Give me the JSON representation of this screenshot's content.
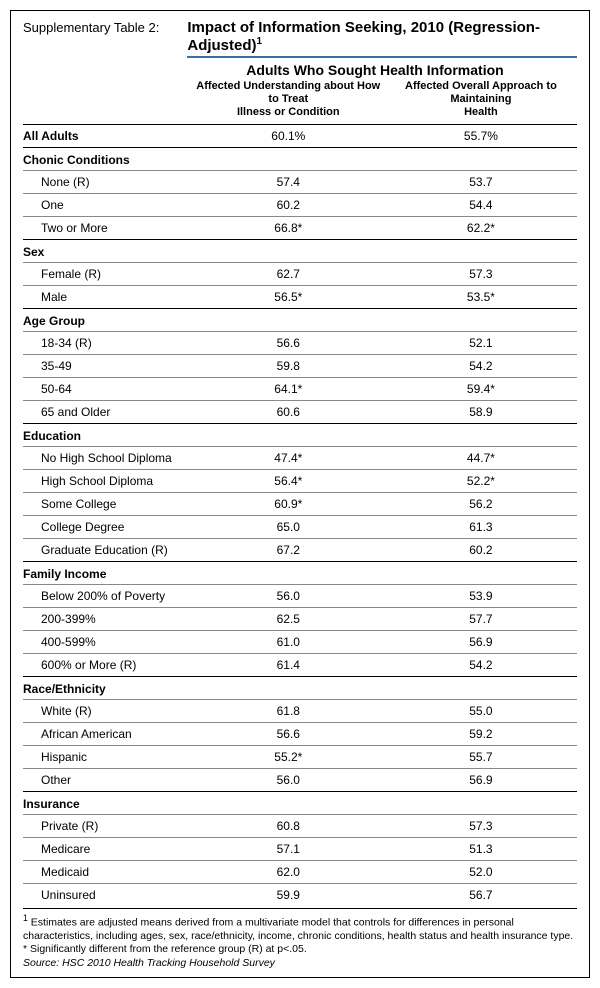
{
  "header": {
    "supp": "Supplementary Table 2:",
    "title": "Impact of Information Seeking, 2010 (Regression-Adjusted)",
    "title_sup": "1",
    "group_header": "Adults Who Sought Health Information",
    "col1_a": "Affected Understanding about How to Treat",
    "col1_b": "Illness or Condition",
    "col2_a": "Affected Overall Approach to Maintaining",
    "col2_b": "Health"
  },
  "rows": [
    {
      "type": "alladults",
      "label": "All Adults",
      "v1": "60.1%",
      "v2": "55.7%",
      "top": true
    },
    {
      "type": "section",
      "label": "Chonic Conditions",
      "top": true
    },
    {
      "type": "indent",
      "label": "None (R)",
      "v1": "57.4",
      "v2": "53.7",
      "thin": true
    },
    {
      "type": "indent",
      "label": "One",
      "v1": "60.2",
      "v2": "54.4",
      "thin": true
    },
    {
      "type": "indent",
      "label": "Two or More",
      "v1": "66.8*",
      "v2": "62.2*",
      "thin": true
    },
    {
      "type": "section",
      "label": "Sex",
      "top": true
    },
    {
      "type": "indent",
      "label": "Female (R)",
      "v1": "62.7",
      "v2": "57.3",
      "thin": true
    },
    {
      "type": "indent",
      "label": "Male",
      "v1": "56.5*",
      "v2": "53.5*",
      "thin": true
    },
    {
      "type": "section",
      "label": "Age Group",
      "top": true
    },
    {
      "type": "indent",
      "label": "18-34 (R)",
      "v1": "56.6",
      "v2": "52.1",
      "thin": true
    },
    {
      "type": "indent",
      "label": "35-49",
      "v1": "59.8",
      "v2": "54.2",
      "thin": true
    },
    {
      "type": "indent",
      "label": "50-64",
      "v1": "64.1*",
      "v2": "59.4*",
      "thin": true
    },
    {
      "type": "indent",
      "label": "65 and Older",
      "v1": "60.6",
      "v2": "58.9",
      "thin": true
    },
    {
      "type": "section",
      "label": "Education",
      "top": true
    },
    {
      "type": "indent",
      "label": "No High School Diploma",
      "v1": "47.4*",
      "v2": "44.7*",
      "thin": true
    },
    {
      "type": "indent",
      "label": "High School Diploma",
      "v1": "56.4*",
      "v2": "52.2*",
      "thin": true
    },
    {
      "type": "indent",
      "label": "Some College",
      "v1": "60.9*",
      "v2": "56.2",
      "thin": true
    },
    {
      "type": "indent",
      "label": "College Degree",
      "v1": "65.0",
      "v2": "61.3",
      "thin": true
    },
    {
      "type": "indent",
      "label": "Graduate Education (R)",
      "v1": "67.2",
      "v2": "60.2",
      "thin": true
    },
    {
      "type": "section",
      "label": "Family Income",
      "top": true
    },
    {
      "type": "indent",
      "label": "Below 200% of Poverty",
      "v1": "56.0",
      "v2": "53.9",
      "thin": true
    },
    {
      "type": "indent",
      "label": "200-399%",
      "v1": "62.5",
      "v2": "57.7",
      "thin": true
    },
    {
      "type": "indent",
      "label": "400-599%",
      "v1": "61.0",
      "v2": "56.9",
      "thin": true
    },
    {
      "type": "indent",
      "label": "600% or More (R)",
      "v1": "61.4",
      "v2": "54.2",
      "thin": true
    },
    {
      "type": "section",
      "label": "Race/Ethnicity",
      "top": true
    },
    {
      "type": "indent",
      "label": "White (R)",
      "v1": "61.8",
      "v2": "55.0",
      "thin": true
    },
    {
      "type": "indent",
      "label": "African American",
      "v1": "56.6",
      "v2": "59.2",
      "thin": true
    },
    {
      "type": "indent",
      "label": "Hispanic",
      "v1": "55.2*",
      "v2": "55.7",
      "thin": true
    },
    {
      "type": "indent",
      "label": "Other",
      "v1": "56.0",
      "v2": "56.9",
      "thin": true
    },
    {
      "type": "section",
      "label": "Insurance",
      "top": true
    },
    {
      "type": "indent",
      "label": "Private (R)",
      "v1": "60.8",
      "v2": "57.3",
      "thin": true
    },
    {
      "type": "indent",
      "label": "Medicare",
      "v1": "57.1",
      "v2": "51.3",
      "thin": true
    },
    {
      "type": "indent",
      "label": "Medicaid",
      "v1": "62.0",
      "v2": "52.0",
      "thin": true
    },
    {
      "type": "indent",
      "label": "Uninsured",
      "v1": "59.9",
      "v2": "56.7",
      "thin": true
    }
  ],
  "footnotes": {
    "f1_a": "1",
    "f1_b": " Estimates are adjusted means derived from a multivariate model that controls for differences in personal characteristics, including ages, sex, race/ethnicity, income, chronic conditions, health status and health insurance type.",
    "f2": "* Significantly different from the reference group (R) at p<.05.",
    "src": "Source: HSC 2010 Health Tracking Household Survey"
  }
}
